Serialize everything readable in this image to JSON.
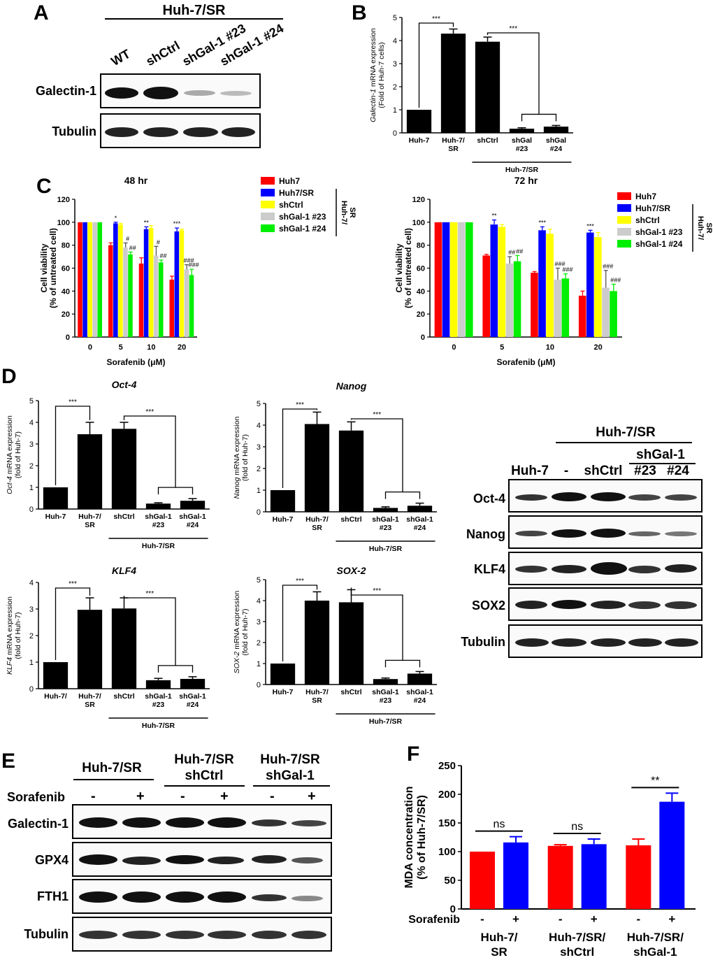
{
  "panels": {
    "A": {
      "letter": "A",
      "group": "Huh-7/SR",
      "lanes": [
        "WT",
        "shCtrl",
        "shGal-1 #23",
        "shGal-1 #24"
      ],
      "rows": [
        "Galectin-1",
        "Tubulin"
      ]
    },
    "B": {
      "letter": "B"
    },
    "C": {
      "letter": "C"
    },
    "D": {
      "letter": "D",
      "blot_group": "Huh-7/SR",
      "blot_subgroup": "shGal-1",
      "blot_lanes": [
        "Huh-7",
        "-",
        "shCtrl",
        "#23",
        "#24"
      ],
      "blot_rows": [
        "Oct-4",
        "Nanog",
        "KLF4",
        "SOX2",
        "Tubulin"
      ]
    },
    "E": {
      "letter": "E",
      "groups": [
        "Huh-7/SR",
        "Huh-7/SR\nshCtrl",
        "Huh-7/SR\nshGal-1"
      ],
      "group_line1": [
        "Huh-7/SR",
        "Huh-7/SR",
        "Huh-7/SR"
      ],
      "group_line2": [
        "",
        "shCtrl",
        "shGal-1"
      ],
      "treatment_label": "Sorafenib",
      "treatment_signs": [
        "-",
        "+",
        "-",
        "+",
        "-",
        "+"
      ],
      "rows": [
        "Galectin-1",
        "GPX4",
        "FTH1",
        "Tubulin"
      ]
    },
    "F": {
      "letter": "F"
    }
  },
  "colors": {
    "red": "#ff0000",
    "blue": "#0000ff",
    "yellow": "#ffff00",
    "gray": "#cccccc",
    "green": "#00ee00",
    "black": "#000000"
  },
  "chart_data": [
    {
      "id": "B",
      "type": "bar",
      "ylabel_italic": "Galectin-1",
      "ylabel_rest": " mRNA expression",
      "ylabel2": "(Fold of Huh-7 cells)",
      "categories": [
        "Huh-7",
        "Huh-7/\nSR",
        "shCtrl",
        "shGal\n#23",
        "shGal\n#24"
      ],
      "values": [
        1.0,
        4.3,
        3.95,
        0.18,
        0.27
      ],
      "errors": [
        0,
        0.2,
        0.2,
        0.04,
        0.05
      ],
      "ylim": [
        0,
        5
      ],
      "yticks": [
        0,
        1,
        2,
        3,
        4,
        5
      ],
      "group_label": "Huh-7/SR",
      "sig": [
        "***",
        "***"
      ]
    },
    {
      "id": "C48",
      "type": "bar",
      "title": "48 hr",
      "xlabel": "Sorafenib (μM)",
      "ylabel": "Cell viability",
      "ylabel2": "(% of untreated cell)",
      "categories": [
        "0",
        "5",
        "10",
        "20"
      ],
      "ylim": [
        0,
        120
      ],
      "yticks": [
        0,
        20,
        40,
        60,
        80,
        100,
        120
      ],
      "series": [
        {
          "name": "Huh7",
          "values": [
            100,
            80,
            64,
            50
          ],
          "errors": [
            0,
            2,
            5,
            3
          ],
          "labels": [
            "",
            "",
            "",
            ""
          ]
        },
        {
          "name": "Huh7/SR",
          "values": [
            100,
            99,
            94,
            92
          ],
          "errors": [
            0,
            1,
            2,
            3
          ],
          "labels": [
            "",
            "*",
            "**",
            "***"
          ]
        },
        {
          "name": "shCtrl",
          "values": [
            100,
            98,
            95,
            93
          ],
          "errors": [
            0,
            1,
            2,
            1
          ],
          "labels": [
            "",
            "",
            "",
            ""
          ]
        },
        {
          "name": "shGal-1 #23",
          "values": [
            100,
            78,
            71,
            59
          ],
          "errors": [
            0,
            4,
            8,
            4
          ],
          "labels": [
            "",
            "#",
            "#",
            "###"
          ]
        },
        {
          "name": "shGal-1 #24",
          "values": [
            100,
            72,
            65,
            54
          ],
          "errors": [
            0,
            2,
            2,
            5
          ],
          "labels": [
            "",
            "##",
            "##",
            "###"
          ]
        }
      ],
      "legend_side_label": "Huh-7/\nSR"
    },
    {
      "id": "C72",
      "type": "bar",
      "title": "72 hr",
      "xlabel": "Sorafenib (μM)",
      "ylabel": "Cell viability",
      "ylabel2": "(% of untreated cell)",
      "categories": [
        "0",
        "5",
        "10",
        "20"
      ],
      "ylim": [
        0,
        120
      ],
      "yticks": [
        0,
        20,
        40,
        60,
        80,
        100,
        120
      ],
      "series": [
        {
          "name": "Huh7",
          "values": [
            100,
            71,
            56,
            36
          ],
          "errors": [
            0,
            1,
            1,
            4
          ],
          "labels": [
            "",
            "",
            "",
            ""
          ]
        },
        {
          "name": "Huh7/SR",
          "values": [
            100,
            98,
            93,
            91
          ],
          "errors": [
            0,
            4,
            3,
            2
          ],
          "labels": [
            "",
            "**",
            "***",
            "***"
          ]
        },
        {
          "name": "shCtrl",
          "values": [
            100,
            96,
            90,
            87
          ],
          "errors": [
            0,
            2,
            4,
            4
          ],
          "labels": [
            "",
            "",
            "",
            ""
          ]
        },
        {
          "name": "shGal-1 #23",
          "values": [
            100,
            64,
            50,
            43
          ],
          "errors": [
            0,
            6,
            10,
            15
          ],
          "labels": [
            "",
            "##",
            "###",
            "###"
          ]
        },
        {
          "name": "shGal-1 #24",
          "values": [
            100,
            66,
            51,
            40
          ],
          "errors": [
            0,
            5,
            4,
            6
          ],
          "labels": [
            "",
            "##",
            "###",
            "###"
          ]
        }
      ],
      "legend_side_label": "Huh-7/\nSR"
    },
    {
      "id": "D_oct4",
      "type": "bar",
      "title": "Oct-4",
      "ylabel_italic": "Oct-4",
      "ylabel_rest": " mRNA expression",
      "ylabel2": "(fold of Huh-7)",
      "categories": [
        "Huh-7",
        "Huh-7/\nSR",
        "shCtrl",
        "shGal-1\n#23",
        "shGal-1\n#24"
      ],
      "values": [
        1.0,
        3.45,
        3.7,
        0.25,
        0.38
      ],
      "errors": [
        0,
        0.55,
        0.3,
        0.04,
        0.1
      ],
      "ylim": [
        0,
        5
      ],
      "yticks": [
        0,
        1,
        2,
        3,
        4,
        5
      ],
      "group_label": "Huh-7/SR",
      "sig": [
        "***",
        "***"
      ]
    },
    {
      "id": "D_nanog",
      "type": "bar",
      "title": "Nanog",
      "ylabel_italic": "Nanog",
      "ylabel_rest": " mRNA expression",
      "ylabel2": "(fold of Huh-7)",
      "categories": [
        "Huh-7",
        "Huh-7/\nSR",
        "shCtrl",
        "shGal-1\n#23",
        "shGal-1\n#24"
      ],
      "values": [
        1.0,
        4.05,
        3.75,
        0.18,
        0.28
      ],
      "errors": [
        0,
        0.55,
        0.4,
        0.05,
        0.12
      ],
      "ylim": [
        0,
        5
      ],
      "yticks": [
        0,
        1,
        2,
        3,
        4,
        5
      ],
      "group_label": "Huh-7/SR",
      "sig": [
        "***",
        "***"
      ]
    },
    {
      "id": "D_klf4",
      "type": "bar",
      "title": "KLF4",
      "ylabel_italic": "KLF4",
      "ylabel_rest": " mRNA expression",
      "ylabel2": "(fold of Huh-7)",
      "categories": [
        "Huh-7/",
        "Huh-7/\nSR",
        "shCtrl",
        "shGal-1\n#23",
        "shGal-1\n#24"
      ],
      "values": [
        1.0,
        2.97,
        3.02,
        0.32,
        0.37
      ],
      "errors": [
        0,
        0.45,
        0.4,
        0.07,
        0.08
      ],
      "ylim": [
        0,
        4
      ],
      "yticks": [
        0,
        1,
        2,
        3,
        4
      ],
      "group_label": "Huh-7/SR",
      "sig": [
        "***",
        "***"
      ]
    },
    {
      "id": "D_sox2",
      "type": "bar",
      "title": "SOX-2",
      "ylabel_italic": "SOX-2",
      "ylabel_rest": " mRNA expression",
      "ylabel2": "(fold of Huh-7)",
      "categories": [
        "Huh-7",
        "Huh-7/\nSR",
        "shCtrl",
        "shGal-1\n#23",
        "shGal-1\n#24"
      ],
      "values": [
        1.0,
        4.0,
        3.92,
        0.26,
        0.52
      ],
      "errors": [
        0,
        0.42,
        0.6,
        0.05,
        0.1
      ],
      "ylim": [
        0,
        5
      ],
      "yticks": [
        0,
        1,
        2,
        3,
        4,
        5
      ],
      "group_label": "Huh-7/SR",
      "sig": [
        "***",
        "***"
      ]
    },
    {
      "id": "F",
      "type": "bar",
      "ylabel": "MDA concentration",
      "ylabel2": "(% of Huh-7/SR)",
      "treatment_label": "Sorafenib",
      "groups": [
        "Huh-7/\nSR",
        "Huh-7/SR/\nshCtrl",
        "Huh-7/SR/\nshGal-1"
      ],
      "signs": [
        "-",
        "+"
      ],
      "values": [
        [
          100,
          116
        ],
        [
          110,
          113
        ],
        [
          111,
          187
        ]
      ],
      "errors": [
        [
          0,
          10
        ],
        [
          2,
          9
        ],
        [
          11,
          15
        ]
      ],
      "ylim": [
        0,
        250
      ],
      "yticks": [
        0,
        50,
        100,
        150,
        200,
        250
      ],
      "sig": [
        "ns",
        "ns",
        "**"
      ]
    }
  ]
}
